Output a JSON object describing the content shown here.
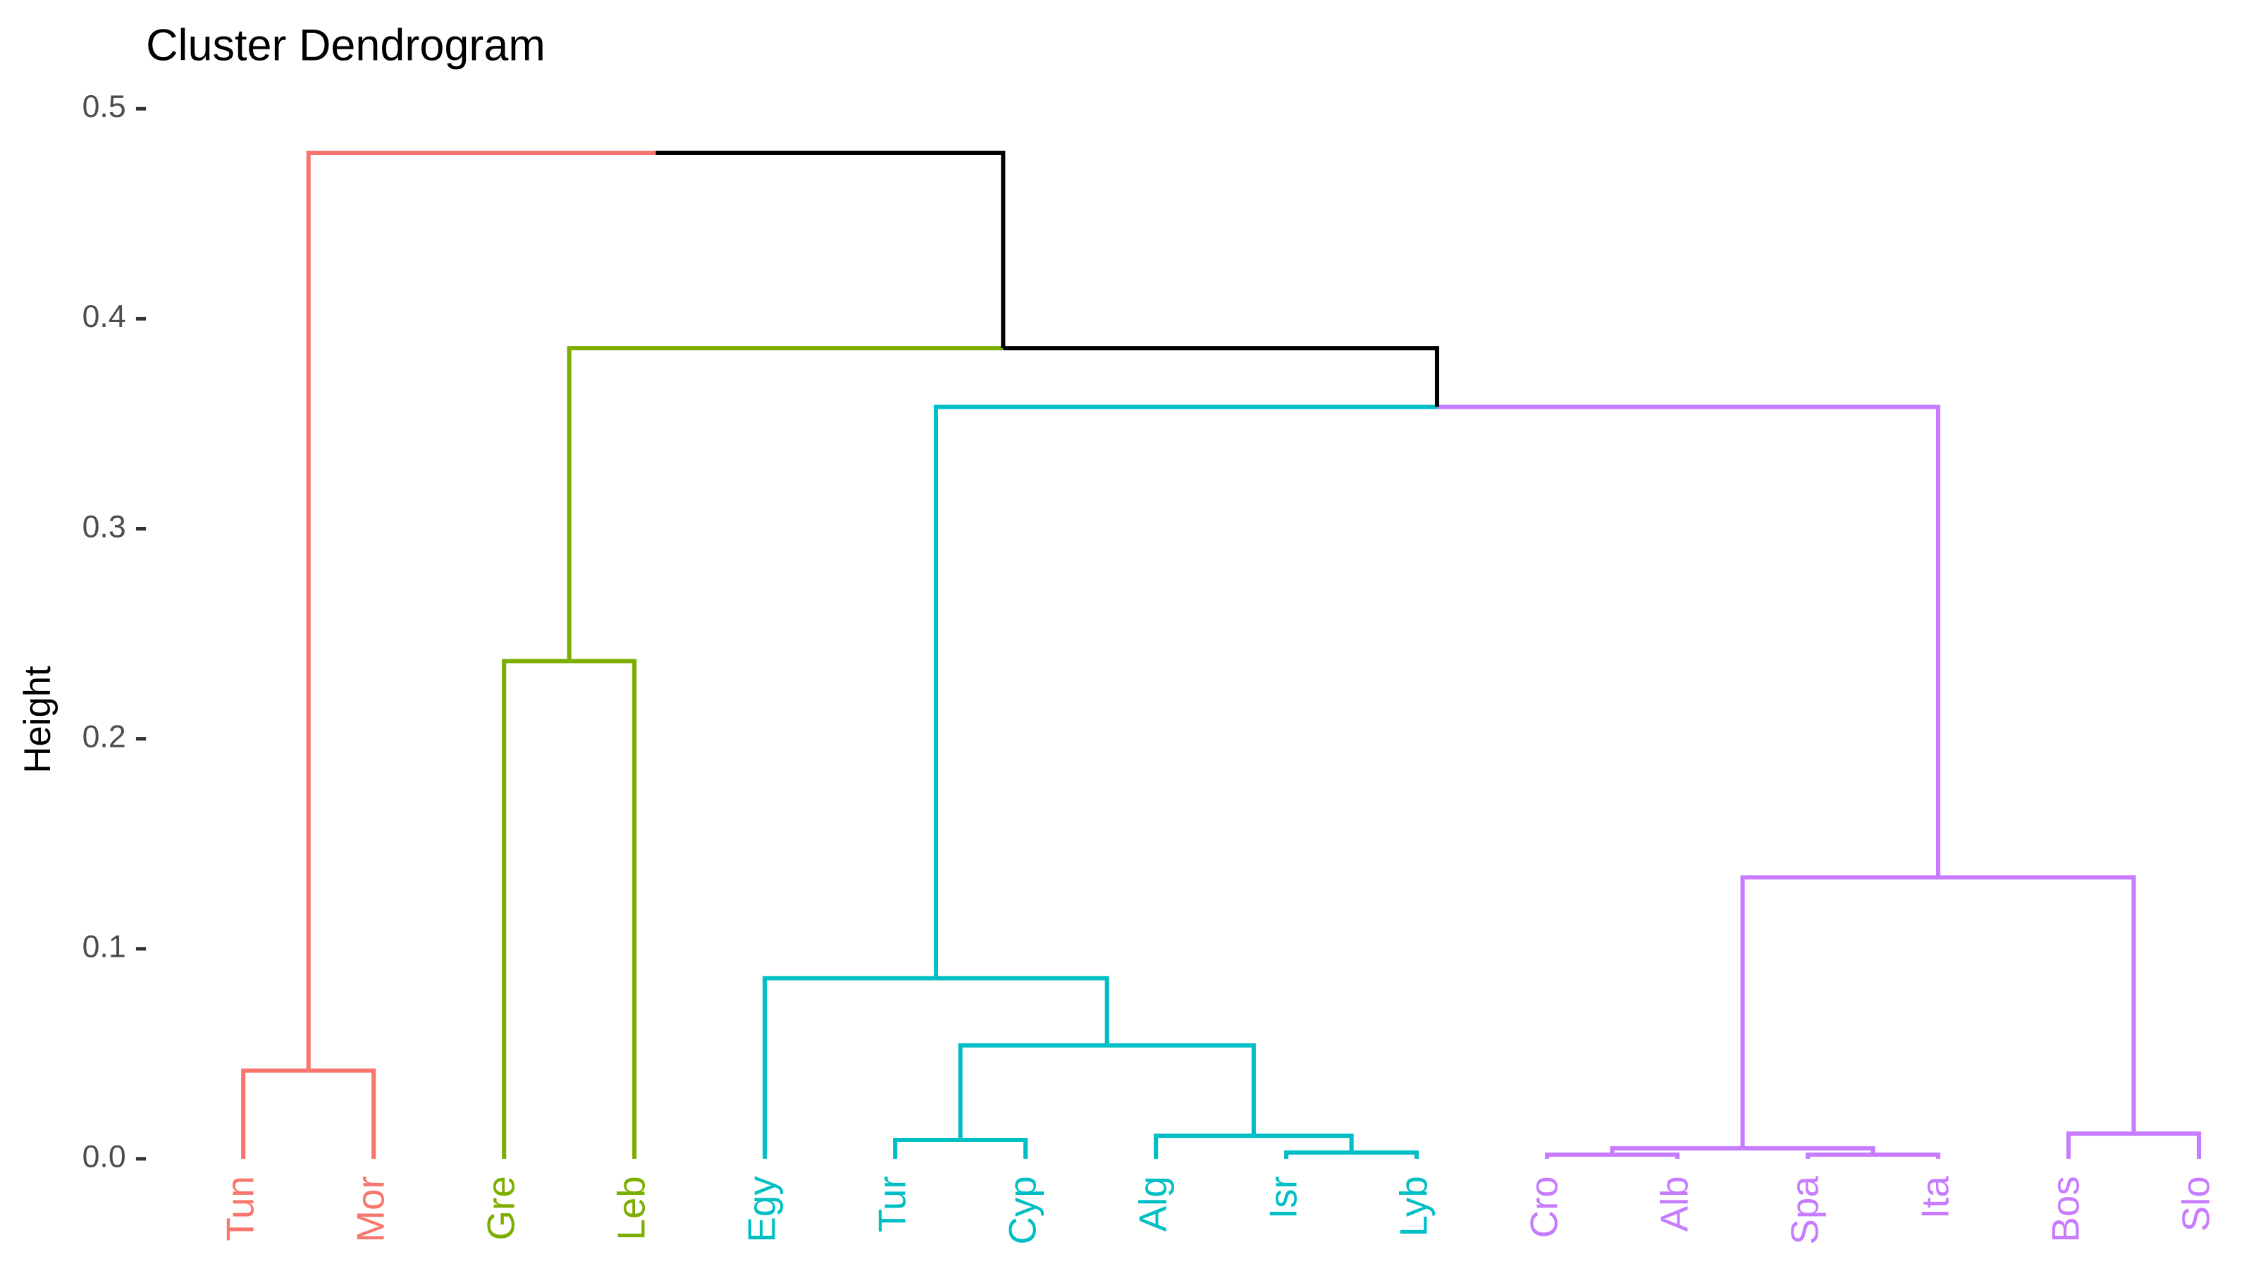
{
  "chart_data": {
    "type": "dendrogram",
    "title": "Cluster Dendrogram",
    "ylabel": "Height",
    "ylim": [
      0,
      0.5
    ],
    "yticks": [
      {
        "value": 0,
        "label": "0.0"
      },
      0.1,
      0.2,
      0.3,
      0.4,
      0.5
    ],
    "leaves": [
      "Tun",
      "Mor",
      "Gre",
      "Leb",
      "Egy",
      "Tur",
      "Cyp",
      "Alg",
      "Isr",
      "Lyb",
      "Cro",
      "Alb",
      "Spa",
      "Ita",
      "Bos",
      "Slo"
    ],
    "leaf_colors": [
      "#F8766D",
      "#F8766D",
      "#7CAE00",
      "#7CAE00",
      "#00BFC4",
      "#00BFC4",
      "#00BFC4",
      "#00BFC4",
      "#00BFC4",
      "#00BFC4",
      "#C77CFF",
      "#C77CFF",
      "#C77CFF",
      "#C77CFF",
      "#C77CFF",
      "#C77CFF"
    ],
    "merges": [
      {
        "children": [
          -1,
          -2
        ],
        "height": 0.042,
        "color": "#F8766D"
      },
      {
        "children": [
          -3,
          -4
        ],
        "height": 0.237,
        "color": "#7CAE00"
      },
      {
        "children": [
          -9,
          -10
        ],
        "height": 0.003,
        "color": "#00BFC4"
      },
      {
        "children": [
          -8,
          3
        ],
        "height": 0.011,
        "color": "#00BFC4"
      },
      {
        "children": [
          -6,
          -7
        ],
        "height": 0.009,
        "color": "#00BFC4"
      },
      {
        "children": [
          5,
          4
        ],
        "height": 0.054,
        "color": "#00BFC4"
      },
      {
        "children": [
          -5,
          6
        ],
        "height": 0.086,
        "color": "#00BFC4"
      },
      {
        "children": [
          -11,
          -12
        ],
        "height": 0.002,
        "color": "#C77CFF"
      },
      {
        "children": [
          -13,
          -14
        ],
        "height": 0.002,
        "color": "#C77CFF"
      },
      {
        "children": [
          8,
          9
        ],
        "height": 0.005,
        "color": "#C77CFF"
      },
      {
        "children": [
          -15,
          -16
        ],
        "height": 0.012,
        "color": "#C77CFF"
      },
      {
        "children": [
          10,
          11
        ],
        "height": 0.134,
        "color": "#C77CFF"
      },
      {
        "children": [
          7,
          12
        ],
        "height": 0.358,
        "color": "#000000"
      },
      {
        "children": [
          2,
          13
        ],
        "height": 0.386,
        "color": "#000000"
      },
      {
        "children": [
          1,
          14
        ],
        "height": 0.479,
        "color": "#000000"
      }
    ]
  }
}
